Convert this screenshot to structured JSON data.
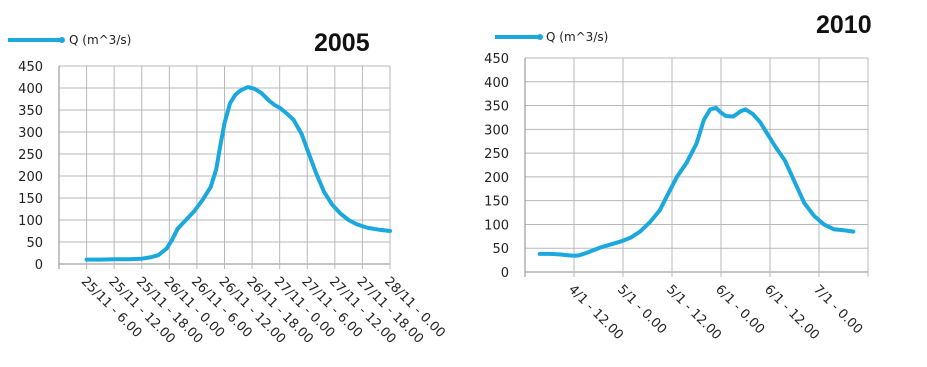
{
  "chart_data": [
    {
      "type": "line",
      "title": "2005",
      "legend": "Q (m^3/s)",
      "ylim": [
        0,
        450
      ],
      "y_ticks": [
        "450",
        "400",
        "350",
        "300",
        "250",
        "200",
        "150",
        "100",
        "50",
        "0"
      ],
      "x_tick_labels": [
        "25/11 - 6.00",
        "25/11 - 12.00",
        "25/11 - 18.00",
        "26/11 - 0.00",
        "26/11 - 6.00",
        "26/11 - 12.00",
        "26/11 - 18.00",
        "27/11 - 0.00",
        "27/11 - 6.00",
        "27/11 - 12.00",
        "27/11 - 18.00",
        "28/11 - 0.00"
      ],
      "color": "#1BA8DD",
      "series": [
        {
          "name": "Q (m^3/s)",
          "points": [
            [
              1.0,
              10
            ],
            [
              1.5,
              10
            ],
            [
              2.0,
              11
            ],
            [
              2.5,
              11
            ],
            [
              3.0,
              12
            ],
            [
              3.3,
              15
            ],
            [
              3.6,
              20
            ],
            [
              3.9,
              35
            ],
            [
              4.1,
              55
            ],
            [
              4.3,
              80
            ],
            [
              4.6,
              100
            ],
            [
              4.9,
              120
            ],
            [
              5.2,
              145
            ],
            [
              5.5,
              175
            ],
            [
              5.7,
              215
            ],
            [
              5.85,
              270
            ],
            [
              6.0,
              320
            ],
            [
              6.2,
              365
            ],
            [
              6.4,
              385
            ],
            [
              6.6,
              395
            ],
            [
              6.85,
              402
            ],
            [
              7.1,
              398
            ],
            [
              7.35,
              388
            ],
            [
              7.6,
              372
            ],
            [
              7.8,
              362
            ],
            [
              8.0,
              355
            ],
            [
              8.2,
              345
            ],
            [
              8.5,
              328
            ],
            [
              8.8,
              295
            ],
            [
              9.0,
              260
            ],
            [
              9.3,
              210
            ],
            [
              9.6,
              165
            ],
            [
              9.9,
              135
            ],
            [
              10.2,
              115
            ],
            [
              10.5,
              100
            ],
            [
              10.8,
              90
            ],
            [
              11.2,
              82
            ],
            [
              11.6,
              78
            ],
            [
              12.0,
              75
            ]
          ]
        }
      ]
    },
    {
      "type": "line",
      "title": "2010",
      "legend": "Q (m^3/s)",
      "ylim": [
        0,
        450
      ],
      "y_ticks": [
        "450",
        "400",
        "350",
        "300",
        "250",
        "200",
        "150",
        "100",
        "50",
        "0"
      ],
      "x_tick_labels": [
        "4/1 - 12.00",
        "5/1 - 0.00",
        "5/1 - 12.00",
        "6/1 - 0.00",
        "6/1 - 12.00",
        "7/1 - 0.00"
      ],
      "color": "#1BA8DD",
      "series": [
        {
          "name": "Q (m^3/s)",
          "points": [
            [
              0.3,
              38
            ],
            [
              0.5,
              38
            ],
            [
              0.7,
              37
            ],
            [
              0.9,
              35
            ],
            [
              1.0,
              34
            ],
            [
              1.1,
              35
            ],
            [
              1.25,
              40
            ],
            [
              1.4,
              46
            ],
            [
              1.55,
              52
            ],
            [
              1.75,
              58
            ],
            [
              1.95,
              64
            ],
            [
              2.15,
              72
            ],
            [
              2.35,
              85
            ],
            [
              2.55,
              105
            ],
            [
              2.75,
              130
            ],
            [
              2.95,
              170
            ],
            [
              3.1,
              200
            ],
            [
              3.3,
              230
            ],
            [
              3.5,
              270
            ],
            [
              3.65,
              320
            ],
            [
              3.78,
              342
            ],
            [
              3.9,
              345
            ],
            [
              4.0,
              335
            ],
            [
              4.1,
              328
            ],
            [
              4.25,
              327
            ],
            [
              4.4,
              338
            ],
            [
              4.5,
              342
            ],
            [
              4.65,
              332
            ],
            [
              4.8,
              315
            ],
            [
              4.95,
              290
            ],
            [
              5.1,
              265
            ],
            [
              5.3,
              235
            ],
            [
              5.5,
              190
            ],
            [
              5.7,
              145
            ],
            [
              5.9,
              118
            ],
            [
              6.1,
              100
            ],
            [
              6.3,
              90
            ],
            [
              6.5,
              88
            ],
            [
              6.7,
              85
            ]
          ]
        }
      ]
    }
  ]
}
